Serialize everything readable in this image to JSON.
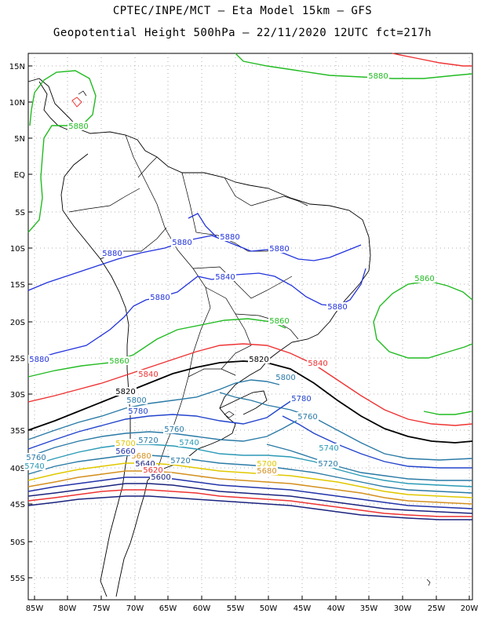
{
  "header": {
    "line1": "CPTEC/INPE/MCT –  Eta Model 15km – GFS",
    "line2": "Geopotential Height 500hPa – 22/11/2020 12UTC fct=217h"
  },
  "axes": {
    "lat_labels": [
      "15N",
      "10N",
      "5N",
      "EQ",
      "5S",
      "10S",
      "15S",
      "20S",
      "25S",
      "30S",
      "35S",
      "40S",
      "45S",
      "50S",
      "55S"
    ],
    "lon_labels": [
      "85W",
      "80W",
      "75W",
      "70W",
      "65W",
      "60W",
      "55W",
      "50W",
      "45W",
      "40W",
      "35W",
      "30W",
      "25W",
      "20W"
    ]
  },
  "contour_labels": [
    {
      "text": "5880",
      "color": "#22bb22"
    },
    {
      "text": "5880",
      "color": "#22bb22"
    },
    {
      "text": "5880",
      "color": "#2233dd"
    },
    {
      "text": "5880",
      "color": "#2233dd"
    },
    {
      "text": "5880",
      "color": "#2233dd"
    },
    {
      "text": "5880",
      "color": "#2233dd"
    },
    {
      "text": "5840",
      "color": "#2233dd"
    },
    {
      "text": "5880",
      "color": "#2233dd"
    },
    {
      "text": "5880",
      "color": "#2233dd"
    },
    {
      "text": "5860",
      "color": "#22bb22"
    },
    {
      "text": "5860",
      "color": "#22bb22"
    },
    {
      "text": "5880",
      "color": "#2233dd"
    },
    {
      "text": "5860",
      "color": "#22bb22"
    },
    {
      "text": "5820",
      "color": "#000000"
    },
    {
      "text": "5840",
      "color": "#ee3333"
    },
    {
      "text": "5840",
      "color": "#ee3333"
    },
    {
      "text": "5800",
      "color": "#2a7aa6"
    },
    {
      "text": "5820",
      "color": "#000000"
    },
    {
      "text": "5800",
      "color": "#2a7aa6"
    },
    {
      "text": "5780",
      "color": "#2244cc"
    },
    {
      "text": "5780",
      "color": "#2244cc"
    },
    {
      "text": "5760",
      "color": "#2a7aa6"
    },
    {
      "text": "5760",
      "color": "#2a7aa6"
    },
    {
      "text": "5720",
      "color": "#2a7aa6"
    },
    {
      "text": "5740",
      "color": "#2a9ab6"
    },
    {
      "text": "5740",
      "color": "#2a9ab6"
    },
    {
      "text": "5720",
      "color": "#2a7aa6"
    },
    {
      "text": "5760",
      "color": "#2a7aa6"
    },
    {
      "text": "5740",
      "color": "#2a9ab6"
    },
    {
      "text": "5700",
      "color": "#e0c800"
    },
    {
      "text": "5680",
      "color": "#d49020"
    },
    {
      "text": "5660",
      "color": "#2233aa"
    },
    {
      "text": "5640",
      "color": "#1a237e"
    },
    {
      "text": "5620",
      "color": "#ee3333"
    },
    {
      "text": "5600",
      "color": "#1a237e"
    },
    {
      "text": "5700",
      "color": "#e0c800"
    },
    {
      "text": "5680",
      "color": "#d49020"
    },
    {
      "text": "5720",
      "color": "#2a7aa6"
    }
  ]
}
